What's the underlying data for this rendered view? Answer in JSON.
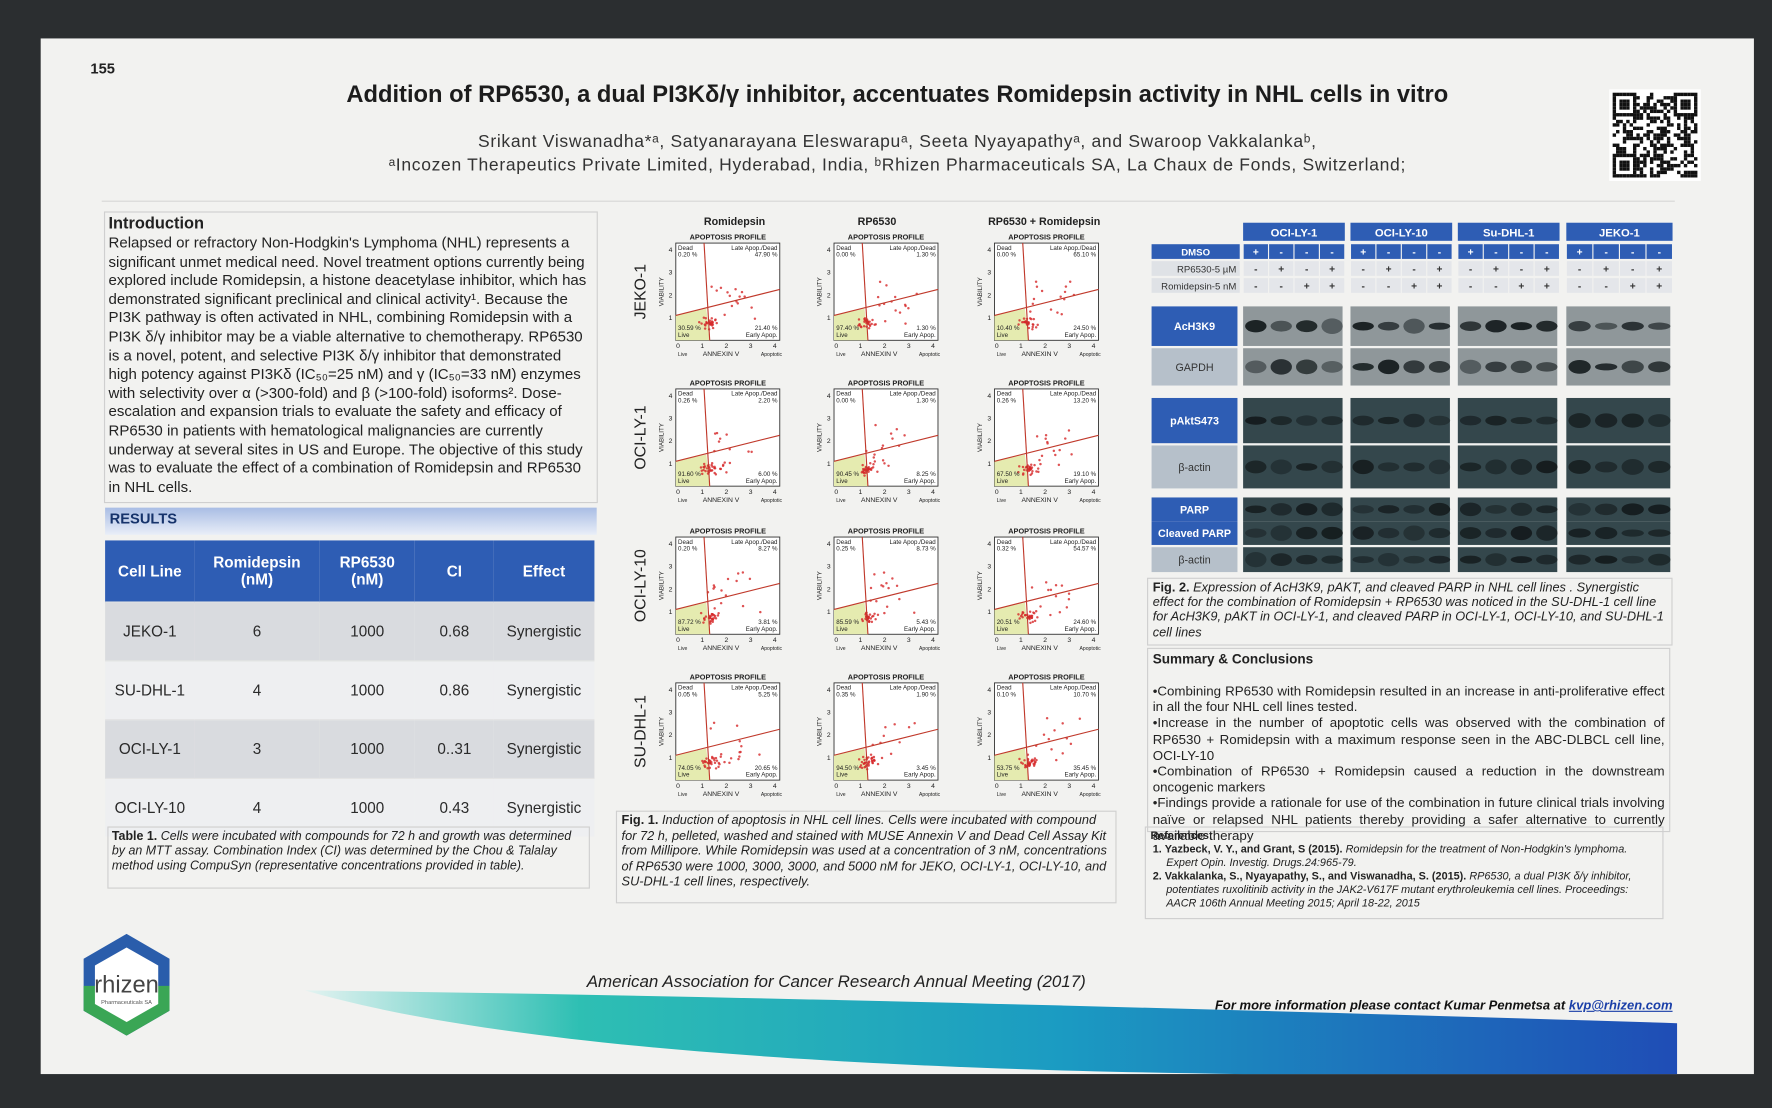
{
  "poster_number": "155",
  "header": {
    "title": "Addition of RP6530, a dual PI3Kδ/γ inhibitor, accentuates Romidepsin activity in NHL cells in vitro",
    "authors": "Srikant Viswanadha*ᵃ, Satyanarayana Eleswarapuᵃ, Seeta Nyayapathyᵃ, and Swaroop Vakkalankaᵇ,",
    "affiliations": "ᵃIncozen Therapeutics Private Limited, Hyderabad, India, ᵇRhizen Pharmaceuticals SA, La Chaux de Fonds, Switzerland;"
  },
  "introduction": {
    "heading": "Introduction",
    "text": "Relapsed or refractory Non-Hodgkin's Lymphoma (NHL) represents a significant unmet medical need. Novel treatment options currently being explored include Romidepsin, a histone deacetylase inhibitor, which has demonstrated significant preclinical and clinical activity¹. Because the PI3K pathway is often activated in NHL, combining Romidepsin with a PI3K δ/γ inhibitor may be a viable alternative to chemotherapy. RP6530 is a novel, potent, and selective PI3K δ/γ inhibitor that demonstrated high potency against PI3Kδ (IC₅₀=25 nM) and γ (IC₅₀=33 nM) enzymes with selectivity over α (>300-fold) and β (>100-fold) isoforms². Dose-escalation and expansion trials to evaluate the safety and efficacy of RP6530 in patients with hematological malignancies are currently underway at several sites in US and Europe. The objective of this study was to evaluate the effect of a combination of Romidepsin and RP6530 in NHL cells."
  },
  "results": {
    "heading": "RESULTS",
    "table": {
      "columns": [
        "Cell Line",
        "Romidepsin (nM)",
        "RP6530 (nM)",
        "CI",
        "Effect"
      ],
      "rows": [
        [
          "JEKO-1",
          6,
          1000,
          0.68,
          "Synergistic"
        ],
        [
          "SU-DHL-1",
          4,
          1000,
          0.86,
          "Synergistic"
        ],
        [
          "OCI-LY-1",
          3,
          1000,
          "0..31",
          "Synergistic"
        ],
        [
          "OCI-LY-10",
          4,
          1000,
          0.43,
          "Synergistic"
        ]
      ]
    },
    "caption": {
      "label": "Table 1.",
      "text": "Cells were incubated with compounds for 72 h and growth was determined by an MTT assay. Combination Index (CI) was determined by the Chou & Talalay method using CompuSyn (representative concentrations provided in table)."
    }
  },
  "figure1": {
    "column_headers": [
      "Romidepsin",
      "RP6530",
      "RP6530 + Romidepsin"
    ],
    "plot_title": "APOPTOSIS PROFILE",
    "quadrant_labels": {
      "dead": "Dead",
      "late": "Late Apop./Dead",
      "live": "Live",
      "early": "Early Apop."
    },
    "y_axis_label": "VIABILITY",
    "x_axis_label": "ANNEXIN V",
    "x_axis_ends": [
      "Live",
      "Apoptotic"
    ],
    "axis_ticks": [
      0,
      1,
      2,
      3,
      4
    ],
    "rows": [
      {
        "cell_line": "JEKO-1",
        "panels": [
          {
            "dead": "0.20 %",
            "late": "47.90 %",
            "live": "30.59 %",
            "early": "21.40 %"
          },
          {
            "dead": "0.00 %",
            "late": "1.30 %",
            "live": "97.40 %",
            "early": "1.30 %"
          },
          {
            "dead": "0.00 %",
            "late": "65.10 %",
            "live": "10.40 %",
            "early": "24.50 %"
          }
        ]
      },
      {
        "cell_line": "OCI-LY-1",
        "panels": [
          {
            "dead": "0.26 %",
            "late": "2.20 %",
            "live": "91.60 %",
            "early": "6.00 %"
          },
          {
            "dead": "0.00 %",
            "late": "1.30 %",
            "live": "90.45 %",
            "early": "8.25 %"
          },
          {
            "dead": "0.26 %",
            "late": "13.20 %",
            "live": "67.50 %",
            "early": "19.10 %"
          }
        ]
      },
      {
        "cell_line": "OCI-LY-10",
        "panels": [
          {
            "dead": "0.20 %",
            "late": "8.27 %",
            "live": "87.72 %",
            "early": "3.81 %"
          },
          {
            "dead": "0.25 %",
            "late": "8.73 %",
            "live": "85.59 %",
            "early": "5.43 %"
          },
          {
            "dead": "0.32 %",
            "late": "54.57 %",
            "live": "20.51 %",
            "early": "24.60 %"
          }
        ]
      },
      {
        "cell_line": "SU-DHL-1",
        "panels": [
          {
            "dead": "0.05 %",
            "late": "5.25 %",
            "live": "74.05 %",
            "early": "20.65 %"
          },
          {
            "dead": "0.35 %",
            "late": "1.90 %",
            "live": "94.50 %",
            "early": "3.45 %"
          },
          {
            "dead": "0.10 %",
            "late": "10.70 %",
            "live": "53.75 %",
            "early": "35.45 %"
          }
        ]
      }
    ],
    "caption": {
      "label": "Fig. 1.",
      "text": "Induction of apoptosis in NHL cell lines. Cells were incubated with compound for 72 h, pelleted, washed and stained with MUSE Annexin V and Dead Cell Assay Kit from Millipore. While Romidepsin was used at a concentration of 3 nM, concentrations of RP6530 were 1000, 3000, 3000, and 5000 nM for JEKO, OCI-LY-1, OCI-LY-10, and SU-DHL-1 cell lines, respectively."
    }
  },
  "figure2": {
    "cell_lines": [
      "OCI-LY-1",
      "OCI-LY-10",
      "Su-DHL-1",
      "JEKO-1"
    ],
    "treatments": [
      {
        "label": "DMSO",
        "signs": [
          "+",
          "-",
          "-",
          "-"
        ]
      },
      {
        "label": "RP6530-5 µM",
        "signs": [
          "-",
          "+",
          "-",
          "+"
        ]
      },
      {
        "label": "Romidepsin-5 nM",
        "signs": [
          "-",
          "-",
          "+",
          "+"
        ]
      }
    ],
    "proteins": [
      "AcH3K9",
      "GAPDH",
      "pAktS473",
      "β-actin",
      "PARP",
      "Cleaved PARP",
      "β-actin"
    ],
    "caption": {
      "label": "Fig. 2.",
      "text": "Expression of AcH3K9, pAKT, and cleaved PARP in NHL cell lines . Synergistic effect for the combination of Romidepsin + RP6530 was noticed in the SU-DHL-1 cell line for AcH3K9, pAKT in OCI-LY-1, and cleaved PARP in OCI-LY-1, OCI-LY-10, and SU-DHL-1 cell lines"
    }
  },
  "summary": {
    "heading": "Summary & Conclusions",
    "points": [
      "•Combining RP6530 with Romidepsin resulted in an increase in anti-proliferative effect in all the four NHL cell lines tested.",
      "•Increase in the number of apoptotic cells was observed with the combination of RP6530 + Romidepsin with a maximum response seen in the ABC-DLBCL cell line, OCI-LY-10",
      "•Combination of RP6530 + Romidepsin caused a reduction in the downstream oncogenic markers",
      "•Findings provide a rationale for use of the combination in future clinical trials involving naïve or relapsed NHL patients thereby providing a safer alternative to currently available therapy"
    ]
  },
  "references": {
    "heading": "References:",
    "items": [
      {
        "number": "1.",
        "authors": "Yazbeck, V. Y., and Grant, S (2015).",
        "text": "Romidepsin for the treatment of Non-Hodgkin's lymphoma. Expert Opin. Investig. Drugs.24:965-79."
      },
      {
        "number": "2.",
        "authors": "Vakkalanka, S., Nyayapathy, S., and Viswanadha, S. (2015).",
        "text": "RP6530, a dual PI3K δ/γ inhibitor, potentiates ruxolitinib activity in the JAK2-V617F mutant erythroleukemia cell lines. Proceedings: AACR 106th Annual Meeting 2015; April 18-22, 2015"
      }
    ]
  },
  "footer": {
    "meeting": "American Association for Cancer Research Annual Meeting (2017)",
    "contact": "For more information please contact Kumar Penmetsa at",
    "email": "kvp@rhizen.com",
    "logo": {
      "name": "rhizen",
      "subtitle": "Pharmaceuticals SA"
    }
  }
}
